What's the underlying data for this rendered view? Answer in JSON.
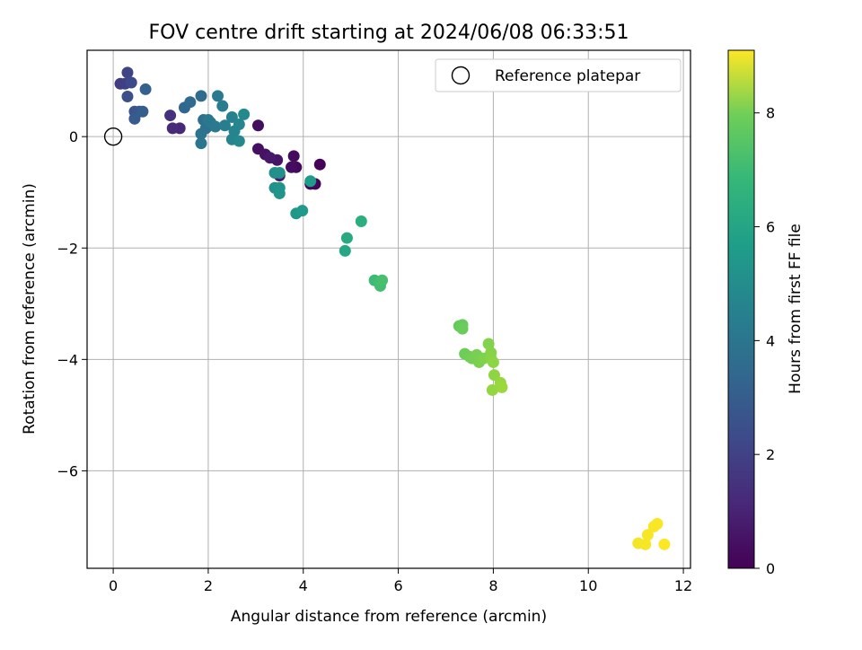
{
  "chart_data": {
    "type": "scatter",
    "title": "FOV centre drift starting at 2024/06/08 06:33:51",
    "xlabel": "Angular distance from reference (arcmin)",
    "ylabel": "Rotation from reference (arcmin)",
    "xlim": [
      -0.55,
      12.15
    ],
    "ylim": [
      -7.75,
      1.55
    ],
    "xticks": [
      0,
      2,
      4,
      6,
      8,
      10,
      12
    ],
    "yticks": [
      -6,
      -4,
      -2,
      0
    ],
    "grid": true,
    "legend": {
      "position": "top-right",
      "entries": [
        "Reference platepar"
      ]
    },
    "reference_point": {
      "x": 0,
      "y": 0
    },
    "colorbar": {
      "label": "Hours from first FF file",
      "min": 0,
      "max": 9.1,
      "ticks": [
        0,
        2,
        4,
        6,
        8
      ],
      "colormap": "viridis"
    },
    "points": [
      {
        "x": 4.35,
        "y": -0.5,
        "c": 0.05
      },
      {
        "x": 4.25,
        "y": -0.85,
        "c": 0.1
      },
      {
        "x": 4.15,
        "y": -0.85,
        "c": 0.15
      },
      {
        "x": 3.85,
        "y": -0.55,
        "c": 0.2
      },
      {
        "x": 3.8,
        "y": -0.35,
        "c": 0.25
      },
      {
        "x": 3.75,
        "y": -0.55,
        "c": 0.3
      },
      {
        "x": 3.05,
        "y": 0.2,
        "c": 0.35
      },
      {
        "x": 3.05,
        "y": -0.22,
        "c": 0.4
      },
      {
        "x": 3.2,
        "y": -0.32,
        "c": 0.45
      },
      {
        "x": 3.45,
        "y": -0.42,
        "c": 0.5
      },
      {
        "x": 3.3,
        "y": -0.38,
        "c": 0.6
      },
      {
        "x": 3.5,
        "y": -0.7,
        "c": 0.7
      },
      {
        "x": 1.4,
        "y": 0.15,
        "c": 1.0
      },
      {
        "x": 1.25,
        "y": 0.15,
        "c": 1.1
      },
      {
        "x": 1.2,
        "y": 0.38,
        "c": 1.3
      },
      {
        "x": 0.15,
        "y": 0.95,
        "c": 1.6
      },
      {
        "x": 0.25,
        "y": 0.95,
        "c": 1.7
      },
      {
        "x": 0.3,
        "y": 1.15,
        "c": 1.8
      },
      {
        "x": 0.38,
        "y": 0.97,
        "c": 2.0
      },
      {
        "x": 0.3,
        "y": 0.72,
        "c": 2.2
      },
      {
        "x": 0.45,
        "y": 0.45,
        "c": 2.4
      },
      {
        "x": 0.55,
        "y": 0.45,
        "c": 2.5
      },
      {
        "x": 0.45,
        "y": 0.32,
        "c": 2.6
      },
      {
        "x": 0.62,
        "y": 0.45,
        "c": 2.7
      },
      {
        "x": 0.68,
        "y": 0.85,
        "c": 2.8
      },
      {
        "x": 1.5,
        "y": 0.52,
        "c": 3.0
      },
      {
        "x": 1.62,
        "y": 0.62,
        "c": 3.1
      },
      {
        "x": 1.85,
        "y": 0.73,
        "c": 3.2
      },
      {
        "x": 1.9,
        "y": 0.3,
        "c": 3.3
      },
      {
        "x": 1.95,
        "y": 0.15,
        "c": 3.4
      },
      {
        "x": 1.85,
        "y": 0.05,
        "c": 3.5
      },
      {
        "x": 1.85,
        "y": -0.12,
        "c": 3.55
      },
      {
        "x": 2.0,
        "y": 0.3,
        "c": 3.6
      },
      {
        "x": 2.05,
        "y": 0.25,
        "c": 3.65
      },
      {
        "x": 2.15,
        "y": 0.18,
        "c": 3.7
      },
      {
        "x": 2.2,
        "y": 0.73,
        "c": 3.75
      },
      {
        "x": 2.3,
        "y": 0.55,
        "c": 3.8
      },
      {
        "x": 2.35,
        "y": 0.2,
        "c": 3.9
      },
      {
        "x": 2.5,
        "y": 0.35,
        "c": 4.0
      },
      {
        "x": 2.5,
        "y": -0.05,
        "c": 4.1
      },
      {
        "x": 2.55,
        "y": 0.1,
        "c": 4.15
      },
      {
        "x": 2.65,
        "y": 0.22,
        "c": 4.2
      },
      {
        "x": 2.65,
        "y": -0.08,
        "c": 4.25
      },
      {
        "x": 2.75,
        "y": 0.4,
        "c": 4.3
      },
      {
        "x": 3.4,
        "y": -0.65,
        "c": 4.5
      },
      {
        "x": 3.5,
        "y": -0.65,
        "c": 4.55
      },
      {
        "x": 3.4,
        "y": -0.92,
        "c": 4.6
      },
      {
        "x": 3.5,
        "y": -0.92,
        "c": 4.65
      },
      {
        "x": 3.5,
        "y": -1.02,
        "c": 4.7
      },
      {
        "x": 3.85,
        "y": -1.38,
        "c": 4.8
      },
      {
        "x": 3.98,
        "y": -1.33,
        "c": 4.9
      },
      {
        "x": 4.15,
        "y": -0.8,
        "c": 5.0
      },
      {
        "x": 4.88,
        "y": -2.05,
        "c": 5.4
      },
      {
        "x": 4.92,
        "y": -1.82,
        "c": 5.5
      },
      {
        "x": 5.22,
        "y": -1.52,
        "c": 5.7
      },
      {
        "x": 5.5,
        "y": -2.58,
        "c": 6.2
      },
      {
        "x": 5.6,
        "y": -2.62,
        "c": 6.3
      },
      {
        "x": 5.62,
        "y": -2.68,
        "c": 6.35
      },
      {
        "x": 5.66,
        "y": -2.58,
        "c": 6.4
      },
      {
        "x": 7.28,
        "y": -3.4,
        "c": 6.9
      },
      {
        "x": 7.35,
        "y": -3.38,
        "c": 6.95
      },
      {
        "x": 7.35,
        "y": -3.45,
        "c": 7.0
      },
      {
        "x": 7.4,
        "y": -3.9,
        "c": 7.05
      },
      {
        "x": 7.5,
        "y": -3.95,
        "c": 7.1
      },
      {
        "x": 7.55,
        "y": -3.98,
        "c": 7.15
      },
      {
        "x": 7.65,
        "y": -3.92,
        "c": 7.2
      },
      {
        "x": 7.7,
        "y": -4.05,
        "c": 7.25
      },
      {
        "x": 7.8,
        "y": -3.98,
        "c": 7.3
      },
      {
        "x": 7.9,
        "y": -3.72,
        "c": 7.35
      },
      {
        "x": 7.95,
        "y": -3.88,
        "c": 7.4
      },
      {
        "x": 7.95,
        "y": -3.98,
        "c": 7.45
      },
      {
        "x": 8.0,
        "y": -4.05,
        "c": 7.5
      },
      {
        "x": 8.02,
        "y": -4.28,
        "c": 7.55
      },
      {
        "x": 7.98,
        "y": -4.55,
        "c": 7.6
      },
      {
        "x": 8.15,
        "y": -4.42,
        "c": 7.65
      },
      {
        "x": 8.18,
        "y": -4.5,
        "c": 7.7
      },
      {
        "x": 11.05,
        "y": -7.3,
        "c": 8.95
      },
      {
        "x": 11.2,
        "y": -7.32,
        "c": 9.0
      },
      {
        "x": 11.25,
        "y": -7.15,
        "c": 9.0
      },
      {
        "x": 11.38,
        "y": -7.0,
        "c": 9.05
      },
      {
        "x": 11.45,
        "y": -6.95,
        "c": 9.05
      },
      {
        "x": 11.6,
        "y": -7.32,
        "c": 9.1
      }
    ]
  }
}
